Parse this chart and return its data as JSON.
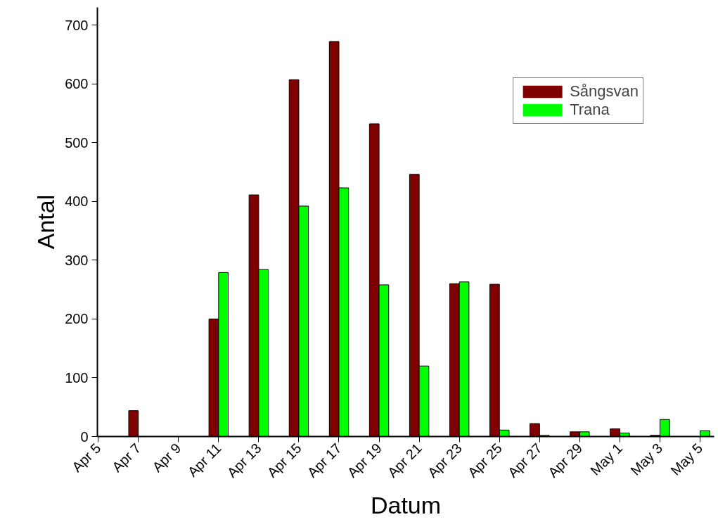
{
  "chart_data": {
    "type": "bar",
    "xlabel": "Datum",
    "ylabel": "Antal",
    "categories": [
      "Apr 5",
      "Apr 7",
      "Apr 9",
      "Apr 11",
      "Apr 13",
      "Apr 15",
      "Apr 17",
      "Apr 19",
      "Apr 21",
      "Apr 23",
      "Apr 25",
      "Apr 27",
      "Apr 29",
      "May 1",
      "May 3",
      "May 5"
    ],
    "series": [
      {
        "name": "Sångsvan",
        "color": "#800000",
        "values": [
          0,
          44,
          0,
          200,
          411,
          607,
          672,
          532,
          446,
          260,
          259,
          22,
          8,
          13,
          2,
          0
        ]
      },
      {
        "name": "Trana",
        "color": "#00ff00",
        "values": [
          0,
          0,
          0,
          279,
          284,
          392,
          423,
          258,
          120,
          263,
          11,
          2,
          8,
          6,
          29,
          10
        ]
      }
    ],
    "ylim": [
      0,
      730
    ],
    "yticks": [
      0,
      100,
      200,
      300,
      400,
      500,
      600,
      700
    ],
    "grid": false,
    "legend": "top right"
  }
}
